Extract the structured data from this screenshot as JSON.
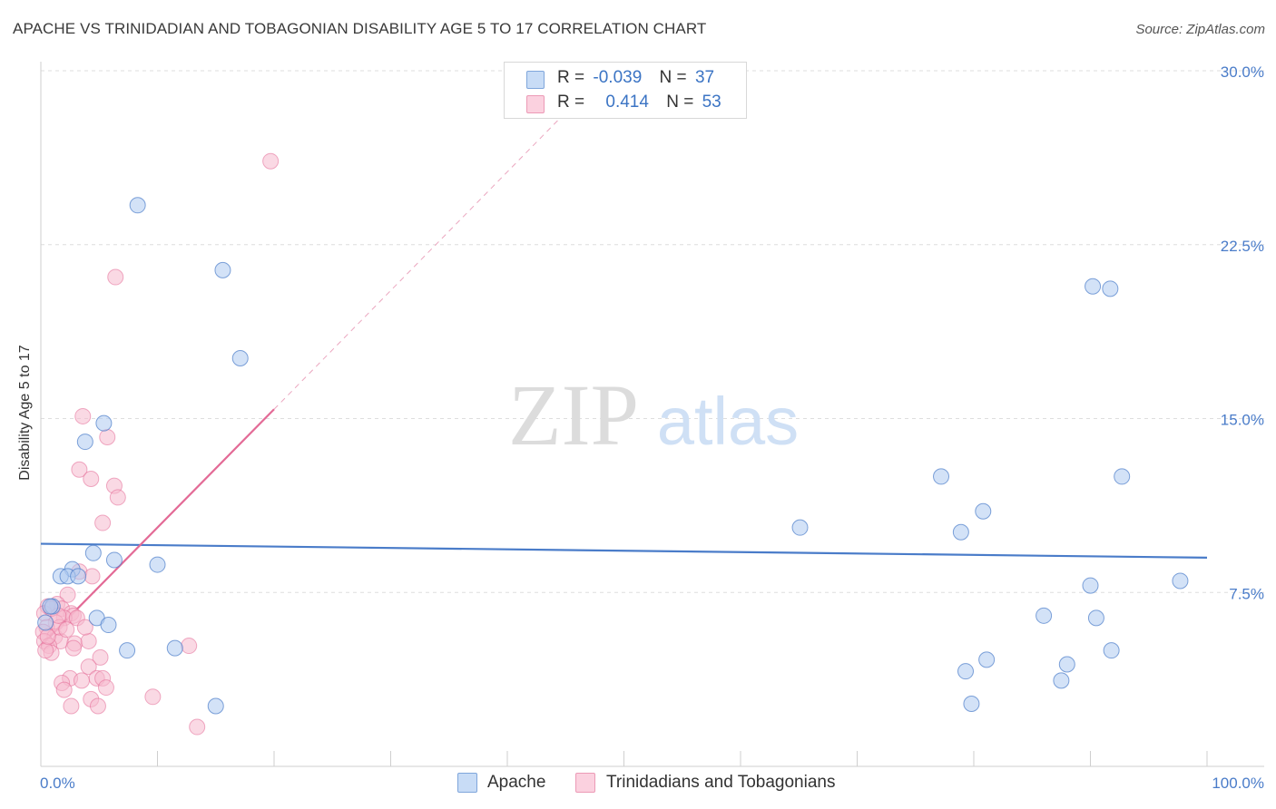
{
  "title": "APACHE VS TRINIDADIAN AND TOBAGONIAN DISABILITY AGE 5 TO 17 CORRELATION CHART",
  "source": "Source: ZipAtlas.com",
  "watermark": {
    "zip": "ZIP",
    "atlas": "atlas"
  },
  "legend": {
    "rows": [
      {
        "r_label": "R =",
        "r_value": "-0.039",
        "n_label": "N =",
        "n_value": "37"
      },
      {
        "r_label": "R =",
        "r_value": "0.414",
        "n_label": "N =",
        "n_value": "53"
      }
    ]
  },
  "bottom_legend": {
    "apache": "Apache",
    "trinidad": "Trinidadians and Tobagonians"
  },
  "chart_data": {
    "type": "scatter",
    "xlabel": "",
    "ylabel": "Disability Age 5 to 17",
    "xlim": [
      0,
      100
    ],
    "ylim": [
      0,
      30.0
    ],
    "x_tick_labels": [
      "0.0%",
      "100.0%"
    ],
    "y_ticks": [
      7.5,
      15.0,
      22.5,
      30.0
    ],
    "y_tick_labels": [
      "7.5%",
      "15.0%",
      "22.5%",
      "30.0%"
    ],
    "colors": {
      "apache": "#4a7cc9",
      "apache_fill": "#aecbf0",
      "trinidad": "#e36a96",
      "trinidad_fill": "#f6b9cd"
    },
    "series": [
      {
        "name": "Apache",
        "r": -0.039,
        "n": 37,
        "trend": {
          "x": [
            0,
            100
          ],
          "y": [
            9.6,
            9.0
          ]
        },
        "points": [
          [
            8.3,
            24.2
          ],
          [
            15.6,
            21.4
          ],
          [
            17.1,
            17.6
          ],
          [
            5.4,
            14.8
          ],
          [
            3.8,
            14.0
          ],
          [
            4.5,
            9.2
          ],
          [
            6.3,
            8.9
          ],
          [
            10.0,
            8.7
          ],
          [
            2.7,
            8.5
          ],
          [
            1.7,
            8.2
          ],
          [
            2.3,
            8.2
          ],
          [
            3.2,
            8.2
          ],
          [
            1.0,
            6.9
          ],
          [
            0.8,
            6.9
          ],
          [
            4.8,
            6.4
          ],
          [
            5.8,
            6.1
          ],
          [
            7.4,
            5.0
          ],
          [
            11.5,
            5.1
          ],
          [
            15.0,
            2.6
          ],
          [
            65.1,
            10.3
          ],
          [
            77.2,
            12.5
          ],
          [
            78.9,
            10.1
          ],
          [
            80.8,
            11.0
          ],
          [
            86.0,
            6.5
          ],
          [
            79.3,
            4.1
          ],
          [
            81.1,
            4.6
          ],
          [
            79.8,
            2.7
          ],
          [
            90.2,
            20.7
          ],
          [
            91.7,
            20.6
          ],
          [
            92.7,
            12.5
          ],
          [
            90.0,
            7.8
          ],
          [
            90.5,
            6.4
          ],
          [
            88.0,
            4.4
          ],
          [
            87.5,
            3.7
          ],
          [
            91.8,
            5.0
          ],
          [
            97.7,
            8.0
          ],
          [
            0.4,
            6.2
          ]
        ]
      },
      {
        "name": "Trinidadians and Tobagonians",
        "r": 0.414,
        "n": 53,
        "trend": {
          "x": [
            0,
            20
          ],
          "y": [
            5.2,
            15.4
          ]
        },
        "trend_extension": {
          "x": [
            20,
            45
          ],
          "y": [
            15.4,
            28.2
          ]
        },
        "points": [
          [
            19.7,
            26.1
          ],
          [
            6.4,
            21.1
          ],
          [
            3.6,
            15.1
          ],
          [
            5.7,
            14.2
          ],
          [
            3.3,
            12.8
          ],
          [
            4.3,
            12.4
          ],
          [
            6.3,
            12.1
          ],
          [
            6.6,
            11.6
          ],
          [
            5.3,
            10.5
          ],
          [
            3.3,
            8.4
          ],
          [
            4.4,
            8.2
          ],
          [
            2.3,
            7.4
          ],
          [
            1.4,
            7.0
          ],
          [
            0.6,
            6.9
          ],
          [
            1.8,
            6.8
          ],
          [
            2.6,
            6.6
          ],
          [
            0.3,
            6.6
          ],
          [
            2.8,
            6.5
          ],
          [
            2.0,
            6.4
          ],
          [
            1.3,
            6.2
          ],
          [
            0.5,
            6.0
          ],
          [
            0.2,
            5.8
          ],
          [
            1.2,
            5.6
          ],
          [
            1.7,
            5.4
          ],
          [
            0.3,
            5.4
          ],
          [
            2.9,
            5.3
          ],
          [
            4.1,
            5.4
          ],
          [
            0.7,
            5.2
          ],
          [
            0.9,
            4.9
          ],
          [
            0.4,
            5.0
          ],
          [
            5.1,
            4.7
          ],
          [
            12.7,
            5.2
          ],
          [
            4.1,
            4.3
          ],
          [
            2.5,
            3.8
          ],
          [
            3.5,
            3.7
          ],
          [
            1.8,
            3.6
          ],
          [
            4.8,
            3.8
          ],
          [
            5.3,
            3.8
          ],
          [
            2.0,
            3.3
          ],
          [
            5.6,
            3.4
          ],
          [
            4.3,
            2.9
          ],
          [
            2.6,
            2.6
          ],
          [
            4.9,
            2.6
          ],
          [
            9.6,
            3.0
          ],
          [
            13.4,
            1.7
          ],
          [
            1.6,
            6.0
          ],
          [
            0.9,
            6.8
          ],
          [
            2.2,
            5.9
          ],
          [
            3.1,
            6.4
          ],
          [
            0.6,
            5.6
          ],
          [
            1.5,
            6.5
          ],
          [
            2.8,
            5.1
          ],
          [
            3.8,
            6.0
          ]
        ]
      }
    ]
  }
}
